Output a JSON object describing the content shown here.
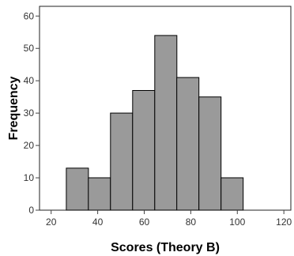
{
  "chart_data": {
    "type": "bar",
    "xlabel": "Scores (Theory B)",
    "ylabel": "Frequency",
    "bin_width": 9.5,
    "bins": [
      {
        "start": 26.5,
        "value": 13
      },
      {
        "start": 36.0,
        "value": 10
      },
      {
        "start": 45.5,
        "value": 30
      },
      {
        "start": 55.0,
        "value": 37
      },
      {
        "start": 64.5,
        "value": 54
      },
      {
        "start": 74.0,
        "value": 41
      },
      {
        "start": 83.5,
        "value": 35
      },
      {
        "start": 93.0,
        "value": 10
      }
    ],
    "xlim": [
      15,
      123
    ],
    "ylim": [
      0,
      63
    ],
    "xticks": [
      20,
      40,
      60,
      80,
      100,
      120
    ],
    "yticks": [
      0,
      10,
      20,
      30,
      40,
      50,
      60
    ],
    "grid": false,
    "bar_color": "#9a9a9a",
    "edge_color": "#000000",
    "background": "#ffffff"
  }
}
